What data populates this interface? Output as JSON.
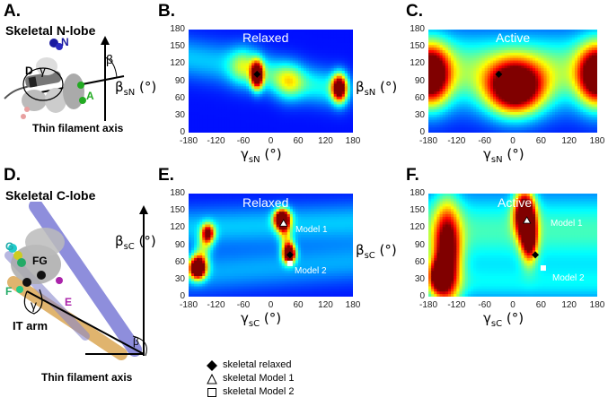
{
  "panels": {
    "A": {
      "label": "A.",
      "title": "Skeletal N-lobe",
      "axis_caption": "Thin filament axis",
      "helix_labels": [
        "N",
        "D",
        "A"
      ],
      "angle_labels": [
        "γ",
        "β"
      ]
    },
    "B": {
      "label": "B.",
      "state": "Relaxed"
    },
    "C": {
      "label": "C.",
      "state": "Active"
    },
    "D": {
      "label": "D.",
      "title": "Skeletal C-lobe",
      "axis_caption": "Thin filament axis",
      "arm_label": "IT arm",
      "helix_labels": [
        "G",
        "FG",
        "F",
        "E"
      ],
      "angle_labels": [
        "γ",
        "β"
      ]
    },
    "E": {
      "label": "E.",
      "state": "Relaxed",
      "model1": "Model 1",
      "model2": "Model 2"
    },
    "F": {
      "label": "F.",
      "state": "Active",
      "model1": "Model 1",
      "model2": "Model 2"
    }
  },
  "axes": {
    "gamma_sN": "γsN (°)",
    "beta_sN": "βsN (°)",
    "gamma_sC": "γsC (°)",
    "beta_sC": "βsC (°)",
    "x_ticks": [
      "-180",
      "-120",
      "-60",
      "0",
      "60",
      "120",
      "180"
    ],
    "y_ticks": [
      "180",
      "150",
      "120",
      "90",
      "60",
      "30",
      "0"
    ]
  },
  "legend": {
    "items": [
      "skeletal relaxed",
      "skeletal Model 1",
      "skeletal Model 2"
    ]
  },
  "chart_data": [
    {
      "type": "heatmap",
      "panel": "B",
      "title": "Relaxed",
      "xlabel": "γsN (°)",
      "ylabel": "βsN (°)",
      "xlim": [
        -180,
        180
      ],
      "ylim": [
        0,
        180
      ],
      "peaks": [
        {
          "x": -30,
          "y": 100,
          "sx": 9,
          "sy": 16,
          "amp": 1.0
        },
        {
          "x": 150,
          "y": 78,
          "sx": 11,
          "sy": 16,
          "amp": 0.95
        }
      ],
      "ridges": [
        {
          "x1": -60,
          "y1": 115,
          "x2": 40,
          "y2": 90,
          "w": 22,
          "amp": 0.28
        },
        {
          "x1": 40,
          "y1": 90,
          "x2": 150,
          "y2": 75,
          "w": 22,
          "amp": 0.25
        },
        {
          "x1": -180,
          "y1": 130,
          "x2": -60,
          "y2": 115,
          "w": 25,
          "amp": 0.18
        }
      ],
      "markers": [
        {
          "kind": "skeletal relaxed",
          "x": -30,
          "y": 102
        }
      ]
    },
    {
      "type": "heatmap",
      "panel": "C",
      "title": "Active",
      "xlabel": "γsN (°)",
      "ylabel": "βsN (°)",
      "xlim": [
        -180,
        180
      ],
      "ylim": [
        0,
        180
      ],
      "peaks": [
        {
          "x": 5,
          "y": 78,
          "sx": 42,
          "sy": 32,
          "amp": 1.0
        },
        {
          "x": -175,
          "y": 100,
          "sx": 28,
          "sy": 36,
          "amp": 0.9
        },
        {
          "x": 180,
          "y": 100,
          "sx": 28,
          "sy": 36,
          "amp": 0.9
        }
      ],
      "ridges": [
        {
          "x1": -180,
          "y1": 110,
          "x2": 180,
          "y2": 110,
          "w": 45,
          "amp": 0.35
        }
      ],
      "markers": [
        {
          "kind": "skeletal relaxed",
          "x": -30,
          "y": 102
        }
      ]
    },
    {
      "type": "heatmap",
      "panel": "E",
      "title": "Relaxed",
      "xlabel": "γsC (°)",
      "ylabel": "βsC (°)",
      "xlim": [
        -180,
        180
      ],
      "ylim": [
        0,
        180
      ],
      "peaks": [
        {
          "x": 25,
          "y": 135,
          "sx": 12,
          "sy": 12,
          "amp": 1.0
        },
        {
          "x": 40,
          "y": 75,
          "sx": 9,
          "sy": 11,
          "amp": 0.9
        },
        {
          "x": -160,
          "y": 50,
          "sx": 13,
          "sy": 13,
          "amp": 0.95
        },
        {
          "x": -138,
          "y": 110,
          "sx": 9,
          "sy": 11,
          "amp": 0.55
        }
      ],
      "ridges": [
        {
          "x1": 25,
          "y1": 135,
          "x2": 40,
          "y2": 75,
          "w": 10,
          "amp": 0.35
        },
        {
          "x1": -160,
          "y1": 50,
          "x2": -138,
          "y2": 110,
          "w": 12,
          "amp": 0.3
        },
        {
          "x1": -180,
          "y1": 120,
          "x2": 180,
          "y2": 130,
          "w": 25,
          "amp": 0.18
        },
        {
          "x1": -180,
          "y1": 40,
          "x2": 180,
          "y2": 60,
          "w": 25,
          "amp": 0.15
        }
      ],
      "markers": [
        {
          "kind": "skeletal Model 1",
          "x": 28,
          "y": 128
        },
        {
          "kind": "skeletal relaxed",
          "x": 42,
          "y": 73
        },
        {
          "kind": "skeletal Model 2",
          "x": 42,
          "y": 58
        }
      ]
    },
    {
      "type": "heatmap",
      "panel": "F",
      "title": "Active",
      "xlabel": "γsC (°)",
      "ylabel": "βsC (°)",
      "xlim": [
        -180,
        180
      ],
      "ylim": [
        0,
        180
      ],
      "peaks": [
        {
          "x": 25,
          "y": 145,
          "sx": 15,
          "sy": 28,
          "amp": 1.0
        },
        {
          "x": 35,
          "y": 100,
          "sx": 12,
          "sy": 28,
          "amp": 0.75
        },
        {
          "x": -140,
          "y": 70,
          "sx": 20,
          "sy": 60,
          "amp": 0.85
        },
        {
          "x": -160,
          "y": 35,
          "sx": 14,
          "sy": 20,
          "amp": 0.6
        }
      ],
      "ridges": [
        {
          "x1": -180,
          "y1": 115,
          "x2": 180,
          "y2": 115,
          "w": 50,
          "amp": 0.3
        },
        {
          "x1": -180,
          "y1": 20,
          "x2": 180,
          "y2": 20,
          "w": 25,
          "amp": 0.18
        }
      ],
      "markers": [
        {
          "kind": "skeletal Model 1",
          "x": 30,
          "y": 133
        },
        {
          "kind": "skeletal relaxed",
          "x": 48,
          "y": 73
        },
        {
          "kind": "skeletal Model 2",
          "x": 65,
          "y": 50
        }
      ]
    }
  ]
}
